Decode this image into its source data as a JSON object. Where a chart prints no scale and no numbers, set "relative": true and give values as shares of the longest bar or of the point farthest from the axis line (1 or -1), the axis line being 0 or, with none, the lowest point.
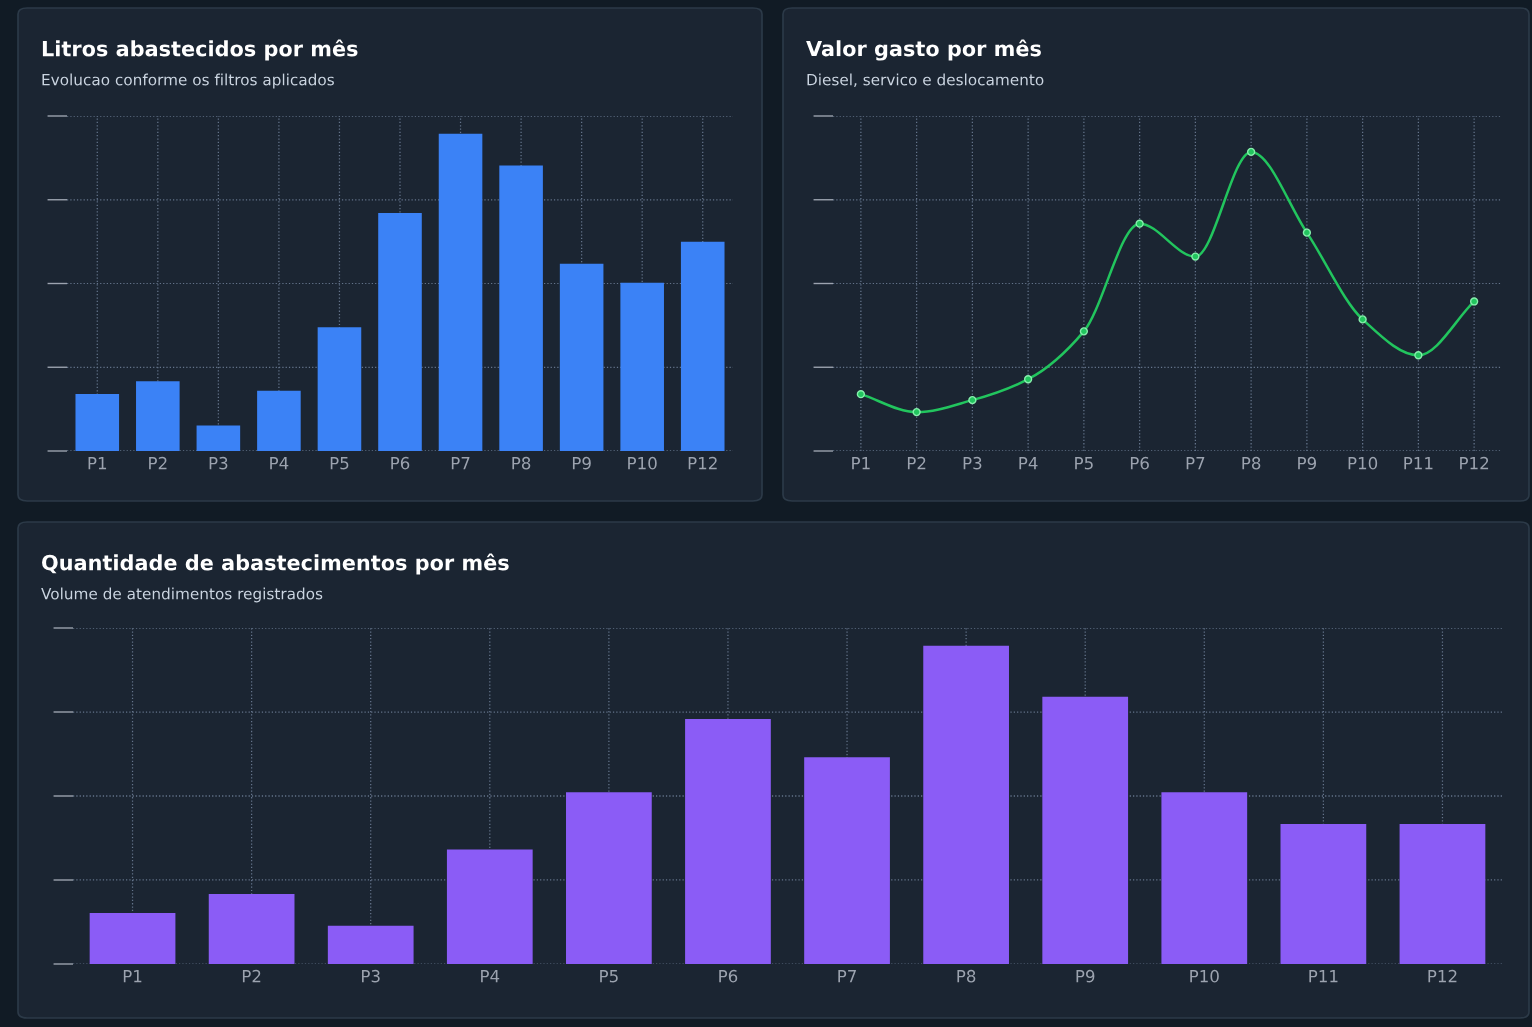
{
  "chart_data": [
    {
      "type": "bar",
      "title": "Litros abastecidos por mês",
      "subtitle": "Evolucao conforme os filtros aplicados",
      "relative": true,
      "grid": true,
      "tick_labels": "x",
      "categories": [
        "P1",
        "P2",
        "P3",
        "P4",
        "P5",
        "P6",
        "P7",
        "P8",
        "P9",
        "P10",
        "P12"
      ],
      "values": [
        0.18,
        0.22,
        0.08,
        0.19,
        0.39,
        0.75,
        1,
        0.9,
        0.59,
        0.53,
        0.66
      ],
      "color": "#3b82f6"
    },
    {
      "type": "line",
      "title": "Valor gasto por mês",
      "subtitle": "Diesel, servico e deslocamento",
      "relative": true,
      "grid": true,
      "tick_labels": "x",
      "marker": "circle",
      "line_style": "solid",
      "categories": [
        "P1",
        "P2",
        "P3",
        "P4",
        "P5",
        "P6",
        "P7",
        "P8",
        "P9",
        "P10",
        "P11",
        "P12"
      ],
      "values": [
        0.19,
        0.13,
        0.17,
        0.24,
        0.4,
        0.76,
        0.65,
        1,
        0.73,
        0.44,
        0.32,
        0.5
      ],
      "color": "#22c55e"
    },
    {
      "type": "bar",
      "title": "Quantidade de abastecimentos por mês",
      "subtitle": "Volume de atendimentos registrados",
      "relative": true,
      "grid": true,
      "tick_labels": "x",
      "categories": [
        "P1",
        "P2",
        "P3",
        "P4",
        "P5",
        "P6",
        "P7",
        "P8",
        "P9",
        "P10",
        "P11",
        "P12"
      ],
      "values": [
        0.16,
        0.22,
        0.12,
        0.36,
        0.54,
        0.77,
        0.65,
        1,
        0.84,
        0.54,
        0.44,
        0.44
      ],
      "color": "#8b5cf6"
    }
  ]
}
